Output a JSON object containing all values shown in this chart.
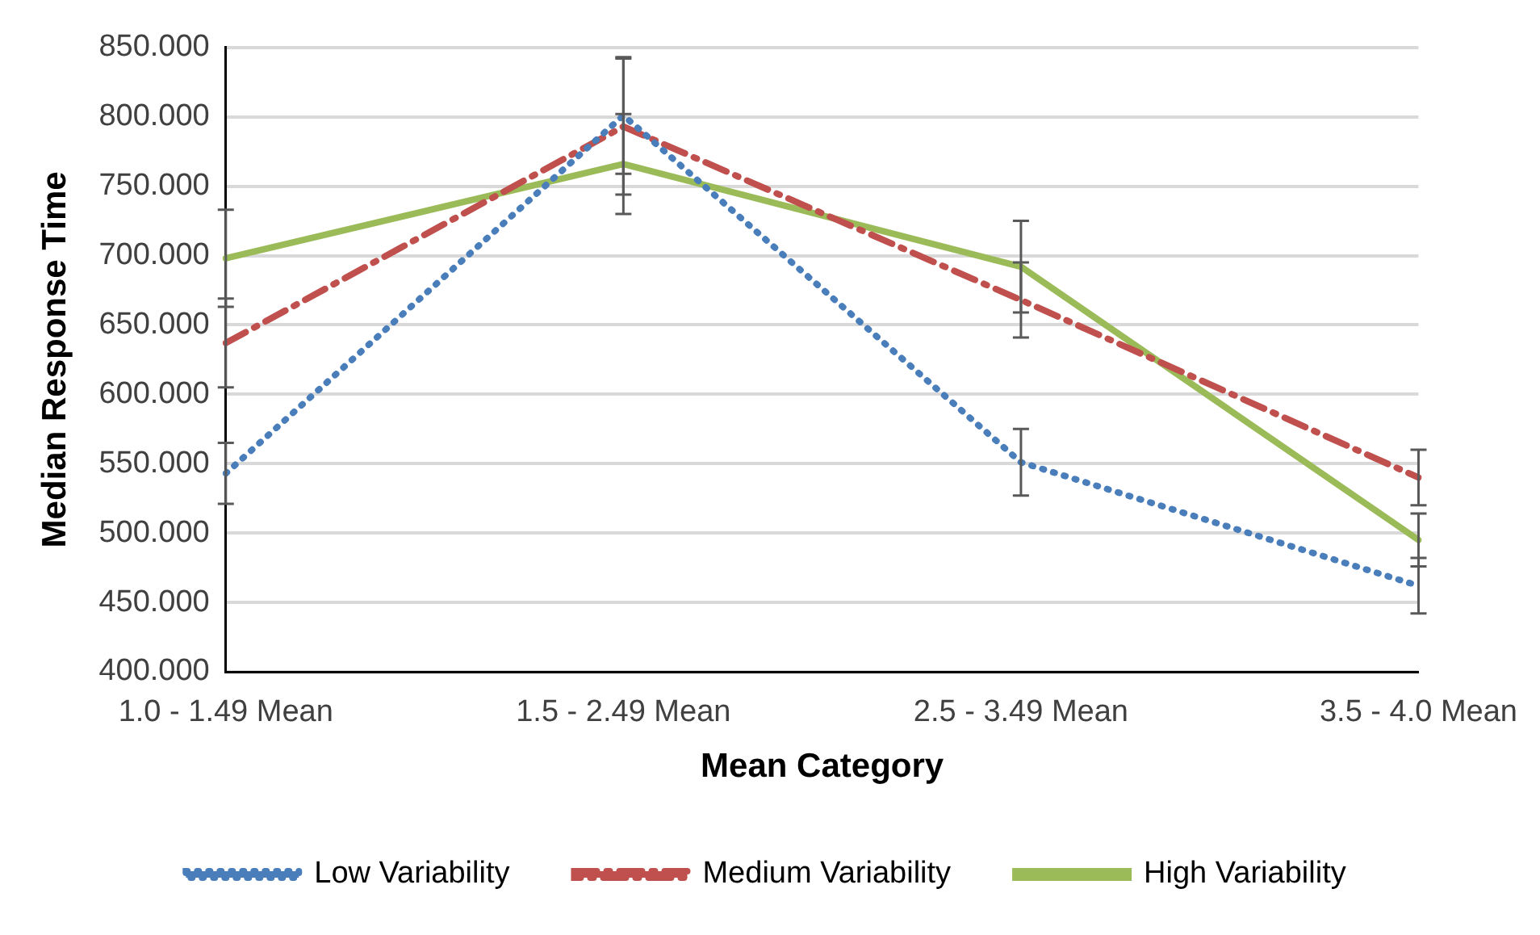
{
  "chart_data": {
    "type": "line",
    "xlabel": "Mean Category",
    "ylabel": "Median Response Time",
    "categories": [
      "1.0 - 1.49 Mean",
      "1.5 - 2.49 Mean",
      "2.5 - 3.49 Mean",
      "3.5 - 4.0 Mean"
    ],
    "series": [
      {
        "name": "Low Variability",
        "color": "#4a7ebb",
        "line_style": "dotted",
        "values": [
          543,
          801,
          551,
          462
        ],
        "errors": [
          22,
          42,
          24,
          20
        ]
      },
      {
        "name": "Medium Variability",
        "color": "#c0504d",
        "line_style": "dashed",
        "values": [
          637,
          793,
          668,
          540
        ],
        "errors": [
          32,
          49,
          27,
          20
        ]
      },
      {
        "name": "High Variability",
        "color": "#9bbb59",
        "line_style": "solid",
        "values": [
          698,
          766,
          692,
          495
        ],
        "errors": [
          35,
          36,
          33,
          19
        ]
      }
    ],
    "ylim": [
      400,
      850
    ],
    "yticks": [
      {
        "value": 400,
        "label": "400.000"
      },
      {
        "value": 450,
        "label": "450.000"
      },
      {
        "value": 500,
        "label": "500.000"
      },
      {
        "value": 550,
        "label": "550.000"
      },
      {
        "value": 600,
        "label": "600.000"
      },
      {
        "value": 650,
        "label": "650.000"
      },
      {
        "value": 700,
        "label": "700.000"
      },
      {
        "value": 750,
        "label": "750.000"
      },
      {
        "value": 800,
        "label": "800.000"
      },
      {
        "value": 850,
        "label": "850.000"
      }
    ],
    "grid": "y",
    "legend": "bottom",
    "marker": "none"
  }
}
